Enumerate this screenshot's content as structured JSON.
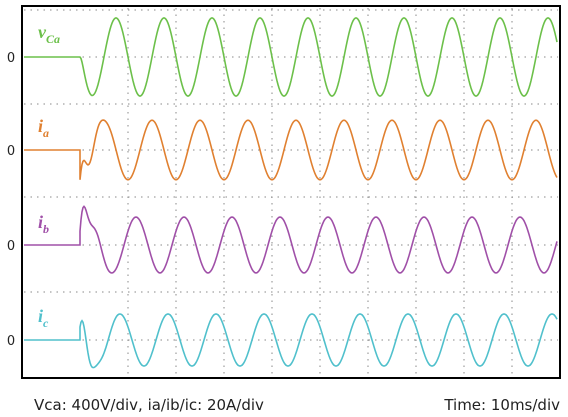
{
  "chart_data": {
    "type": "line",
    "x_unit": "ms",
    "x_div": 10,
    "x_divisions": 10,
    "x_range": [
      0,
      100
    ],
    "grid": true,
    "zero_label": "0",
    "caption_left": "Vca: 400V/div, ia/ib/ic: 20A/div",
    "caption_right": "Time: 10ms/div",
    "series": [
      {
        "name": "vCa",
        "base": "v",
        "sub": "Ca",
        "color": "#6cc04a",
        "step_ms": 0,
        "freq_hz": 100,
        "amplitude_div": 0.42,
        "phase_deg": 180,
        "transient": "smooth"
      },
      {
        "name": "ia",
        "base": "i",
        "sub": "a",
        "color": "#e08030",
        "step_ms": 0,
        "freq_hz": 100,
        "amplitude_div": 0.32,
        "phase_deg": 270,
        "transient": "spike"
      },
      {
        "name": "ib",
        "base": "i",
        "sub": "b",
        "color": "#a050a8",
        "step_ms": 0,
        "freq_hz": 100,
        "amplitude_div": 0.3,
        "phase_deg": 30,
        "transient": "spike"
      },
      {
        "name": "ic",
        "base": "i",
        "sub": "c",
        "color": "#50c0cc",
        "step_ms": 0,
        "freq_hz": 100,
        "amplitude_div": 0.28,
        "phase_deg": 150,
        "transient": "spike"
      }
    ]
  }
}
